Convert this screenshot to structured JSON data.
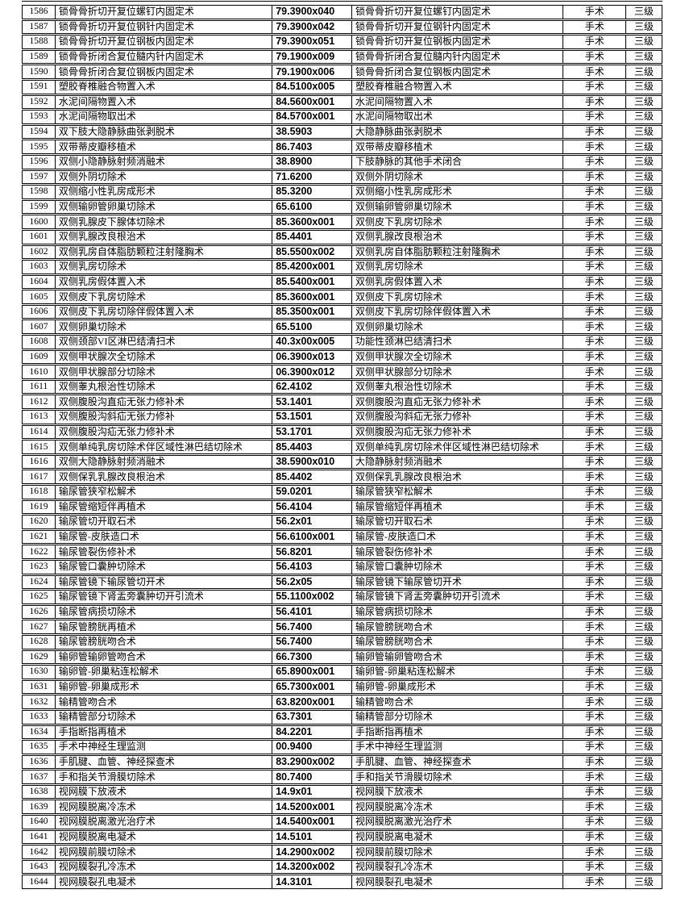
{
  "page": {
    "background": "#ffffff",
    "border_color": "#000000",
    "text_color": "#000000"
  },
  "table": {
    "rows": [
      [
        "1586",
        "锁骨骨折切开复位螺钉内固定术",
        "79.3900x040",
        "锁骨骨折切开复位螺钉内固定术",
        "手术",
        "三级"
      ],
      [
        "1587",
        "锁骨骨折切开复位钢针内固定术",
        "79.3900x042",
        "锁骨骨折切开复位钢针内固定术",
        "手术",
        "三级"
      ],
      [
        "1588",
        "锁骨骨折切开复位钢板内固定术",
        "79.3900x051",
        "锁骨骨折切开复位钢板内固定术",
        "手术",
        "三级"
      ],
      [
        "1589",
        "锁骨骨折闭合复位髓内针内固定术",
        "79.1900x009",
        "锁骨骨折闭合复位髓内针内固定术",
        "手术",
        "三级"
      ],
      [
        "1590",
        "锁骨骨折闭合复位钢板内固定术",
        "79.1900x006",
        "锁骨骨折闭合复位钢板内固定术",
        "手术",
        "三级"
      ],
      [
        "1591",
        "塑胶脊椎融合物置入术",
        "84.5100x005",
        "塑胶脊椎融合物置入术",
        "手术",
        "三级"
      ],
      [
        "1592",
        "水泥间隔物置入术",
        "84.5600x001",
        "水泥间隔物置入术",
        "手术",
        "三级"
      ],
      [
        "1593",
        "水泥间隔物取出术",
        "84.5700x001",
        "水泥间隔物取出术",
        "手术",
        "三级"
      ],
      [
        "1594",
        "双下肢大隐静脉曲张剥脱术",
        "38.5903",
        "大隐静脉曲张剥脱术",
        "手术",
        "三级"
      ],
      [
        "1595",
        "双带蒂皮瓣移植术",
        "86.7403",
        "双带蒂皮瓣移植术",
        "手术",
        "三级"
      ],
      [
        "1596",
        "双侧小隐静脉射频消融术",
        "38.8900",
        "下肢静脉的其他手术闭合",
        "手术",
        "三级"
      ],
      [
        "1597",
        "双侧外阴切除术",
        "71.6200",
        "双侧外阴切除术",
        "手术",
        "三级"
      ],
      [
        "1598",
        "双侧缩小性乳房成形术",
        "85.3200",
        "双侧缩小性乳房成形术",
        "手术",
        "三级"
      ],
      [
        "1599",
        "双侧输卵管卵巢切除术",
        "65.6100",
        "双侧输卵管卵巢切除术",
        "手术",
        "三级"
      ],
      [
        "1600",
        "双侧乳腺皮下腺体切除术",
        "85.3600x001",
        "双侧皮下乳房切除术",
        "手术",
        "三级"
      ],
      [
        "1601",
        "双侧乳腺改良根治术",
        "85.4401",
        "双侧乳腺改良根治术",
        "手术",
        "三级"
      ],
      [
        "1602",
        "双侧乳房自体脂肪颗粒注射隆胸术",
        "85.5500x002",
        "双侧乳房自体脂肪颗粒注射隆胸术",
        "手术",
        "三级"
      ],
      [
        "1603",
        "双侧乳房切除术",
        "85.4200x001",
        "双侧乳房切除术",
        "手术",
        "三级"
      ],
      [
        "1604",
        "双侧乳房假体置入术",
        "85.5400x001",
        "双侧乳房假体置入术",
        "手术",
        "三级"
      ],
      [
        "1605",
        "双侧皮下乳房切除术",
        "85.3600x001",
        "双侧皮下乳房切除术",
        "手术",
        "三级"
      ],
      [
        "1606",
        "双侧皮下乳房切除伴假体置入术",
        "85.3500x001",
        "双侧皮下乳房切除伴假体置入术",
        "手术",
        "三级"
      ],
      [
        "1607",
        "双侧卵巢切除术",
        "65.5100",
        "双侧卵巢切除术",
        "手术",
        "三级"
      ],
      [
        "1608",
        "双侧颈部VI区淋巴结清扫术",
        "40.3x00x005",
        "功能性颈淋巴结清扫术",
        "手术",
        "三级"
      ],
      [
        "1609",
        "双侧甲状腺次全切除术",
        "06.3900x013",
        "双侧甲状腺次全切除术",
        "手术",
        "三级"
      ],
      [
        "1610",
        "双侧甲状腺部分切除术",
        "06.3900x012",
        "双侧甲状腺部分切除术",
        "手术",
        "三级"
      ],
      [
        "1611",
        "双侧睾丸根治性切除术",
        "62.4102",
        "双侧睾丸根治性切除术",
        "手术",
        "三级"
      ],
      [
        "1612",
        "双侧腹股沟直疝无张力修补术",
        "53.1401",
        "双侧腹股沟直疝无张力修补术",
        "手术",
        "三级"
      ],
      [
        "1613",
        "双侧腹股沟斜疝无张力修补",
        "53.1501",
        "双侧腹股沟斜疝无张力修补",
        "手术",
        "三级"
      ],
      [
        "1614",
        "双侧腹股沟疝无张力修补术",
        "53.1701",
        "双侧腹股沟疝无张力修补术",
        "手术",
        "三级"
      ],
      [
        "1615",
        "双侧单纯乳房切除术伴区域性淋巴结切除术",
        "85.4403",
        "双侧单纯乳房切除术伴区域性淋巴结切除术",
        "手术",
        "三级"
      ],
      [
        "1616",
        "双侧大隐静脉射频消融术",
        "38.5900x010",
        "大隐静脉射频消融术",
        "手术",
        "三级"
      ],
      [
        "1617",
        "双侧保乳乳腺改良根治术",
        "85.4402",
        "双侧保乳乳腺改良根治术",
        "手术",
        "三级"
      ],
      [
        "1618",
        "输尿管狭窄松解术",
        "59.0201",
        "输尿管狭窄松解术",
        "手术",
        "三级"
      ],
      [
        "1619",
        "输尿管缩短伴再植术",
        "56.4104",
        "输尿管缩短伴再植术",
        "手术",
        "三级"
      ],
      [
        "1620",
        "输尿管切开取石术",
        "56.2x01",
        "输尿管切开取石术",
        "手术",
        "三级"
      ],
      [
        "1621",
        "输尿管-皮肤造口术",
        "56.6100x001",
        "输尿管-皮肤造口术",
        "手术",
        "三级"
      ],
      [
        "1622",
        "输尿管裂伤修补术",
        "56.8201",
        "输尿管裂伤修补术",
        "手术",
        "三级"
      ],
      [
        "1623",
        "输尿管口囊肿切除术",
        "56.4103",
        "输尿管口囊肿切除术",
        "手术",
        "三级"
      ],
      [
        "1624",
        "输尿管镜下输尿管切开术",
        "56.2x05",
        "输尿管镜下输尿管切开术",
        "手术",
        "三级"
      ],
      [
        "1625",
        "输尿管镜下肾盂旁囊肿切开引流术",
        "55.1100x002",
        "输尿管镜下肾盂旁囊肿切开引流术",
        "手术",
        "三级"
      ],
      [
        "1626",
        "输尿管病损切除术",
        "56.4101",
        "输尿管病损切除术",
        "手术",
        "三级"
      ],
      [
        "1627",
        "输尿管膀胱再植术",
        "56.7400",
        "输尿管膀胱吻合术",
        "手术",
        "三级"
      ],
      [
        "1628",
        "输尿管膀胱吻合术",
        "56.7400",
        "输尿管膀胱吻合术",
        "手术",
        "三级"
      ],
      [
        "1629",
        "输卵管输卵管吻合术",
        "66.7300",
        "输卵管输卵管吻合术",
        "手术",
        "三级"
      ],
      [
        "1630",
        "输卵管-卵巢粘连松解术",
        "65.8900x001",
        "输卵管-卵巢粘连松解术",
        "手术",
        "三级"
      ],
      [
        "1631",
        "输卵管-卵巢成形术",
        "65.7300x001",
        "输卵管-卵巢成形术",
        "手术",
        "三级"
      ],
      [
        "1632",
        "输精管吻合术",
        "63.8200x001",
        "输精管吻合术",
        "手术",
        "三级"
      ],
      [
        "1633",
        "输精管部分切除术",
        "63.7301",
        "输精管部分切除术",
        "手术",
        "三级"
      ],
      [
        "1634",
        "手指断指再植术",
        "84.2201",
        "手指断指再植术",
        "手术",
        "三级"
      ],
      [
        "1635",
        "手术中神经生理监测",
        "00.9400",
        "手术中神经生理监测",
        "手术",
        "三级"
      ],
      [
        "1636",
        "手肌腱、血管、神经探查术",
        "83.2900x002",
        "手肌腱、血管、神经探查术",
        "手术",
        "三级"
      ],
      [
        "1637",
        "手和指关节滑膜切除术",
        "80.7400",
        "手和指关节滑膜切除术",
        "手术",
        "三级"
      ],
      [
        "1638",
        "视网膜下放液术",
        "14.9x01",
        "视网膜下放液术",
        "手术",
        "三级"
      ],
      [
        "1639",
        "视网膜脱离冷冻术",
        "14.5200x001",
        "视网膜脱离冷冻术",
        "手术",
        "三级"
      ],
      [
        "1640",
        "视网膜脱离激光治疗术",
        "14.5400x001",
        "视网膜脱离激光治疗术",
        "手术",
        "三级"
      ],
      [
        "1641",
        "视网膜脱离电凝术",
        "14.5101",
        "视网膜脱离电凝术",
        "手术",
        "三级"
      ],
      [
        "1642",
        "视网膜前膜切除术",
        "14.2900x002",
        "视网膜前膜切除术",
        "手术",
        "三级"
      ],
      [
        "1643",
        "视网膜裂孔冷冻术",
        "14.3200x002",
        "视网膜裂孔冷冻术",
        "手术",
        "三级"
      ],
      [
        "1644",
        "视网膜裂孔电凝术",
        "14.3101",
        "视网膜裂孔电凝术",
        "手术",
        "三级"
      ]
    ]
  }
}
